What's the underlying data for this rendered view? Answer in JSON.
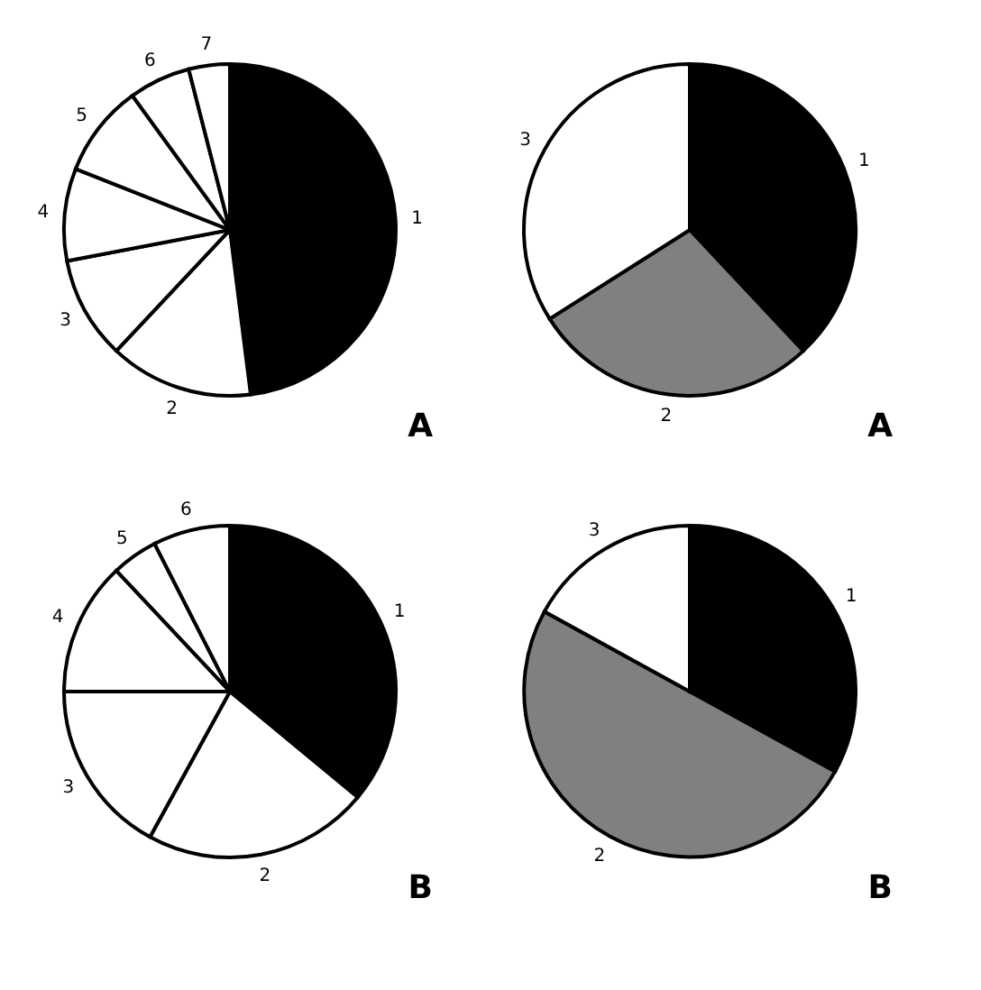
{
  "chart_data": [
    {
      "type": "pie",
      "categories": [
        "1",
        "2",
        "3",
        "4",
        "5",
        "6",
        "7"
      ],
      "values": [
        48,
        14,
        10,
        9,
        9,
        6,
        4
      ],
      "colors": [
        "#000000",
        "#ffffff",
        "#ffffff",
        "#ffffff",
        "#ffffff",
        "#ffffff",
        "#ffffff"
      ],
      "annotations": [
        "A"
      ]
    },
    {
      "type": "pie",
      "categories": [
        "1",
        "2",
        "3"
      ],
      "values": [
        38,
        28,
        34
      ],
      "colors": [
        "#000000",
        "#808080",
        "#ffffff"
      ],
      "annotations": [
        "A"
      ]
    },
    {
      "type": "pie",
      "categories": [
        "1",
        "2",
        "3",
        "4",
        "5",
        "6"
      ],
      "values": [
        36,
        22,
        17,
        13,
        4.5,
        7.5
      ],
      "colors": [
        "#000000",
        "#ffffff",
        "#ffffff",
        "#ffffff",
        "#ffffff",
        "#ffffff"
      ],
      "annotations": [
        "B"
      ]
    },
    {
      "type": "pie",
      "categories": [
        "1",
        "2",
        "3"
      ],
      "values": [
        33,
        50,
        17
      ],
      "colors": [
        "#000000",
        "#808080",
        "#ffffff"
      ],
      "annotations": [
        "B"
      ]
    }
  ]
}
